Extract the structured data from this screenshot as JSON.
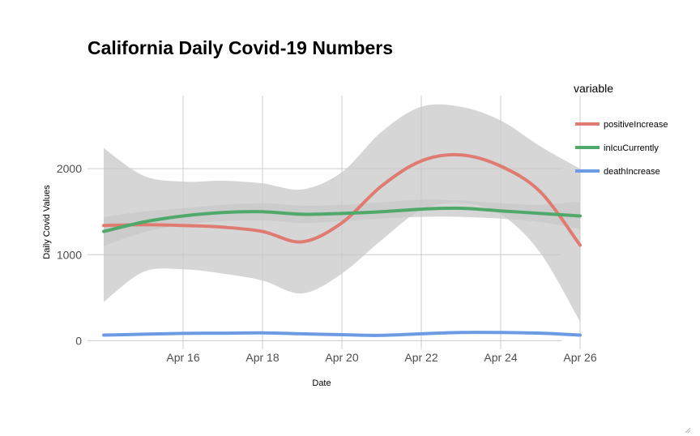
{
  "chart_data": {
    "type": "line",
    "title": "California Daily Covid-19 Numbers",
    "xlabel": "Date",
    "ylabel": "Daily Covid Values",
    "x": [
      "2020-04-15",
      "2020-04-16",
      "2020-04-17",
      "2020-04-18",
      "2020-04-19",
      "2020-04-20",
      "2020-04-21",
      "2020-04-22",
      "2020-04-23",
      "2020-04-24",
      "2020-04-25",
      "2020-04-26"
    ],
    "x_ticks": [
      {
        "date": "2020-04-16",
        "label": "Apr 16"
      },
      {
        "date": "2020-04-18",
        "label": "Apr 18"
      },
      {
        "date": "2020-04-20",
        "label": "Apr 20"
      },
      {
        "date": "2020-04-22",
        "label": "Apr 22"
      },
      {
        "date": "2020-04-24",
        "label": "Apr 24"
      },
      {
        "date": "2020-04-26",
        "label": "Apr 26"
      }
    ],
    "y_ticks": [
      0,
      1000,
      2000
    ],
    "ylim": [
      -100,
      2850
    ],
    "xlim": [
      "2020-04-14",
      "2020-04-26"
    ],
    "grid": true,
    "legend": {
      "title": "variable",
      "position": "right"
    },
    "series": [
      {
        "name": "positiveIncrease",
        "color": "#e07b72",
        "x": [
          "2020-04-14",
          "2020-04-15",
          "2020-04-16",
          "2020-04-17",
          "2020-04-18",
          "2020-04-19",
          "2020-04-20",
          "2020-04-21",
          "2020-04-22",
          "2020-04-23",
          "2020-04-24",
          "2020-04-25",
          "2020-04-26"
        ],
        "values": [
          1340,
          1350,
          1340,
          1320,
          1270,
          1150,
          1370,
          1800,
          2090,
          2160,
          2030,
          1730,
          1110
        ],
        "band_lower": [
          450,
          800,
          830,
          780,
          700,
          550,
          780,
          1170,
          1520,
          1600,
          1470,
          1020,
          220
        ],
        "band_upper": [
          2240,
          1920,
          1850,
          1860,
          1830,
          1760,
          1960,
          2430,
          2720,
          2720,
          2560,
          2260,
          2000
        ]
      },
      {
        "name": "inIcuCurrently",
        "color": "#4fa96b",
        "x": [
          "2020-04-14",
          "2020-04-15",
          "2020-04-16",
          "2020-04-17",
          "2020-04-18",
          "2020-04-19",
          "2020-04-20",
          "2020-04-21",
          "2020-04-22",
          "2020-04-23",
          "2020-04-24",
          "2020-04-25",
          "2020-04-26"
        ],
        "values": [
          1270,
          1380,
          1450,
          1490,
          1500,
          1470,
          1480,
          1500,
          1530,
          1540,
          1510,
          1480,
          1450
        ],
        "band_lower": [
          1100,
          1260,
          1350,
          1390,
          1400,
          1370,
          1390,
          1420,
          1440,
          1440,
          1420,
          1380,
          1300
        ],
        "band_upper": [
          1440,
          1500,
          1540,
          1580,
          1600,
          1570,
          1580,
          1610,
          1640,
          1630,
          1600,
          1580,
          1620
        ]
      },
      {
        "name": "deathIncrease",
        "color": "#6d9be3",
        "x": [
          "2020-04-14",
          "2020-04-15",
          "2020-04-16",
          "2020-04-17",
          "2020-04-18",
          "2020-04-19",
          "2020-04-20",
          "2020-04-21",
          "2020-04-22",
          "2020-04-23",
          "2020-04-24",
          "2020-04-25",
          "2020-04-26"
        ],
        "values": [
          65,
          75,
          85,
          88,
          90,
          80,
          70,
          62,
          80,
          95,
          95,
          88,
          65
        ]
      }
    ]
  }
}
